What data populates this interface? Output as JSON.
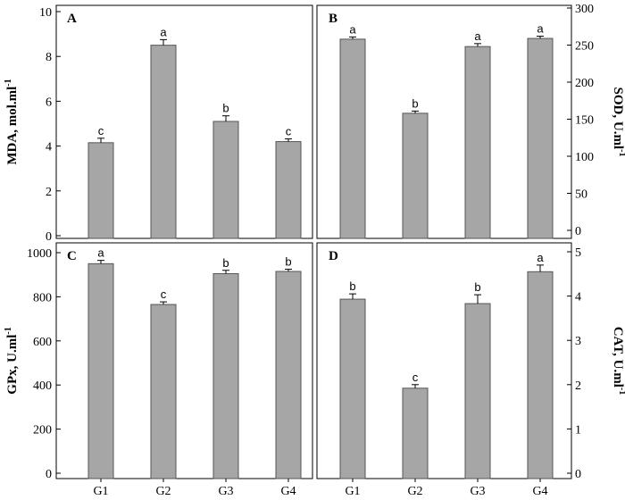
{
  "chart_data": [
    {
      "panel": "A",
      "type": "bar",
      "categories": [
        "G1",
        "G2",
        "G3",
        "G4"
      ],
      "values": [
        4.15,
        8.5,
        5.1,
        4.2
      ],
      "errors": [
        0.2,
        0.25,
        0.25,
        0.12
      ],
      "significance": [
        "c",
        "a",
        "b",
        "c"
      ],
      "ylabel": "MDA, mol.ml",
      "ylabel_sup": "-1",
      "ylim": [
        0,
        10
      ],
      "yticks": [
        0,
        2,
        4,
        6,
        8,
        10
      ],
      "yaxis_side": "left",
      "bar_color": "#a6a6a6"
    },
    {
      "panel": "B",
      "type": "bar",
      "categories": [
        "G1",
        "G2",
        "G3",
        "G4"
      ],
      "values": [
        258,
        158,
        248,
        259
      ],
      "errors": [
        3,
        3,
        4,
        3
      ],
      "significance": [
        "a",
        "b",
        "a",
        "a"
      ],
      "ylabel": "SOD, U.ml",
      "ylabel_sup": "-1",
      "ylim": [
        0,
        300
      ],
      "yticks": [
        0,
        50,
        100,
        150,
        200,
        250,
        300
      ],
      "yaxis_side": "right",
      "bar_color": "#a6a6a6"
    },
    {
      "panel": "C",
      "type": "bar",
      "categories": [
        "G1",
        "G2",
        "G3",
        "G4"
      ],
      "values": [
        950,
        765,
        905,
        915
      ],
      "errors": [
        15,
        12,
        15,
        10
      ],
      "significance": [
        "a",
        "c",
        "b",
        "b"
      ],
      "ylabel": "GPx, U.ml",
      "ylabel_sup": "-1",
      "ylim": [
        0,
        1000
      ],
      "yticks": [
        0,
        200,
        400,
        600,
        800,
        1000
      ],
      "yaxis_side": "left",
      "bar_color": "#a6a6a6"
    },
    {
      "panel": "D",
      "type": "bar",
      "categories": [
        "G1",
        "G2",
        "G3",
        "G4"
      ],
      "values": [
        3.93,
        1.92,
        3.83,
        4.55
      ],
      "errors": [
        0.12,
        0.08,
        0.2,
        0.15
      ],
      "significance": [
        "b",
        "c",
        "b",
        "a"
      ],
      "ylabel": "CAT, U.ml",
      "ylabel_sup": "-1",
      "ylim": [
        0,
        5
      ],
      "yticks": [
        0,
        1,
        2,
        3,
        4,
        5
      ],
      "yaxis_side": "right",
      "bar_color": "#a6a6a6"
    }
  ]
}
